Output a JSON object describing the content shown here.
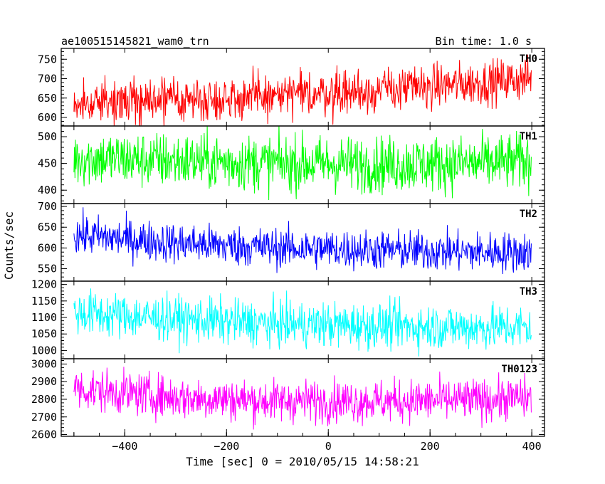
{
  "title_left": "ae100515145821_wam0_trn",
  "title_right": "Bin time: 1.0 s",
  "chart_data": {
    "type": "line",
    "xlabel": "Time [sec] 0 = 2010/05/15 14:58:21",
    "ylabel": "Counts/sec",
    "xlim": [
      -525,
      425
    ],
    "x_range": [
      -500,
      399
    ],
    "x_ticks": [
      -400,
      -200,
      0,
      200,
      400
    ],
    "x_tick_labels": [
      "−400",
      "−200",
      "0",
      "200",
      "400"
    ],
    "series": [
      {
        "name": "TH0",
        "color": "#ff0000",
        "ylim": [
          578,
          778
        ],
        "y_ticks": [
          600,
          650,
          700,
          750
        ],
        "trend": [
          [
            -500,
            640
          ],
          [
            -300,
            645
          ],
          [
            -100,
            655
          ],
          [
            100,
            670
          ],
          [
            300,
            690
          ],
          [
            399,
            700
          ]
        ],
        "noise": 28
      },
      {
        "name": "TH1",
        "color": "#00ff00",
        "ylim": [
          375,
          520
        ],
        "y_ticks": [
          400,
          450,
          500
        ],
        "trend": [
          [
            -500,
            460
          ],
          [
            -300,
            455
          ],
          [
            -100,
            450
          ],
          [
            100,
            448
          ],
          [
            300,
            450
          ],
          [
            399,
            455
          ]
        ],
        "noise": 26
      },
      {
        "name": "TH2",
        "color": "#0000ff",
        "ylim": [
          520,
          707
        ],
        "y_ticks": [
          550,
          600,
          650,
          700
        ],
        "trend": [
          [
            -500,
            632
          ],
          [
            -300,
            612
          ],
          [
            -100,
            600
          ],
          [
            100,
            595
          ],
          [
            300,
            590
          ],
          [
            399,
            590
          ]
        ],
        "noise": 24
      },
      {
        "name": "TH3",
        "color": "#00ffff",
        "ylim": [
          975,
          1210
        ],
        "y_ticks": [
          1000,
          1050,
          1100,
          1150,
          1200
        ],
        "trend": [
          [
            -500,
            1115
          ],
          [
            -300,
            1095
          ],
          [
            -100,
            1080
          ],
          [
            100,
            1075
          ],
          [
            300,
            1070
          ],
          [
            399,
            1070
          ]
        ],
        "noise": 34
      },
      {
        "name": "TH0123",
        "color": "#ff00ff",
        "ylim": [
          2590,
          3030
        ],
        "y_ticks": [
          2600,
          2700,
          2800,
          2900,
          3000
        ],
        "trend": [
          [
            -500,
            2860
          ],
          [
            -300,
            2810
          ],
          [
            -100,
            2790
          ],
          [
            100,
            2790
          ],
          [
            300,
            2795
          ],
          [
            399,
            2810
          ]
        ],
        "noise": 60
      }
    ]
  }
}
